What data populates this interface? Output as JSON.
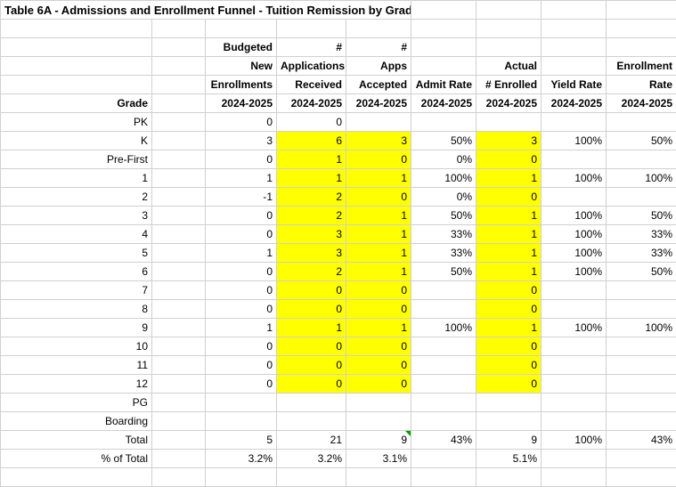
{
  "title": "Table 6A - Admissions and Enrollment Funnel - Tuition Remission by Grade",
  "headers": {
    "r1": [
      "",
      "",
      "Budgeted",
      "#",
      "#",
      "",
      "",
      "",
      ""
    ],
    "r2": [
      "",
      "",
      "New",
      "Applications",
      "Apps",
      "",
      "Actual",
      "",
      "Enrollment"
    ],
    "r3": [
      "",
      "",
      "Enrollments",
      "Received",
      "Accepted",
      "Admit Rate",
      "# Enrolled",
      "Yield Rate",
      "Rate"
    ],
    "r4": [
      "Grade",
      "",
      "2024-2025",
      "2024-2025",
      "2024-2025",
      "2024-2025",
      "2024-2025",
      "2024-2025",
      "2024-2025"
    ]
  },
  "rows": [
    {
      "grade": "PK",
      "budget": "0",
      "apps": "0",
      "acc": "",
      "admit": "",
      "enr": "",
      "yield": "",
      "erate": ""
    },
    {
      "grade": "K",
      "budget": "3",
      "apps": "6",
      "acc": "3",
      "admit": "50%",
      "enr": "3",
      "yield": "100%",
      "erate": "50%"
    },
    {
      "grade": "Pre-First",
      "budget": "0",
      "apps": "1",
      "acc": "0",
      "admit": "0%",
      "enr": "0",
      "yield": "",
      "erate": ""
    },
    {
      "grade": "1",
      "budget": "1",
      "apps": "1",
      "acc": "1",
      "admit": "100%",
      "enr": "1",
      "yield": "100%",
      "erate": "100%"
    },
    {
      "grade": "2",
      "budget": "-1",
      "apps": "2",
      "acc": "0",
      "admit": "0%",
      "enr": "0",
      "yield": "",
      "erate": ""
    },
    {
      "grade": "3",
      "budget": "0",
      "apps": "2",
      "acc": "1",
      "admit": "50%",
      "enr": "1",
      "yield": "100%",
      "erate": "50%"
    },
    {
      "grade": "4",
      "budget": "0",
      "apps": "3",
      "acc": "1",
      "admit": "33%",
      "enr": "1",
      "yield": "100%",
      "erate": "33%"
    },
    {
      "grade": "5",
      "budget": "1",
      "apps": "3",
      "acc": "1",
      "admit": "33%",
      "enr": "1",
      "yield": "100%",
      "erate": "33%"
    },
    {
      "grade": "6",
      "budget": "0",
      "apps": "2",
      "acc": "1",
      "admit": "50%",
      "enr": "1",
      "yield": "100%",
      "erate": "50%"
    },
    {
      "grade": "7",
      "budget": "0",
      "apps": "0",
      "acc": "0",
      "admit": "",
      "enr": "0",
      "yield": "",
      "erate": ""
    },
    {
      "grade": "8",
      "budget": "0",
      "apps": "0",
      "acc": "0",
      "admit": "",
      "enr": "0",
      "yield": "",
      "erate": ""
    },
    {
      "grade": "9",
      "budget": "1",
      "apps": "1",
      "acc": "1",
      "admit": "100%",
      "enr": "1",
      "yield": "100%",
      "erate": "100%"
    },
    {
      "grade": "10",
      "budget": "0",
      "apps": "0",
      "acc": "0",
      "admit": "",
      "enr": "0",
      "yield": "",
      "erate": ""
    },
    {
      "grade": "11",
      "budget": "0",
      "apps": "0",
      "acc": "0",
      "admit": "",
      "enr": "0",
      "yield": "",
      "erate": ""
    },
    {
      "grade": "12",
      "budget": "0",
      "apps": "0",
      "acc": "0",
      "admit": "",
      "enr": "0",
      "yield": "",
      "erate": ""
    },
    {
      "grade": "PG",
      "budget": "",
      "apps": "",
      "acc": "",
      "admit": "",
      "enr": "",
      "yield": "",
      "erate": ""
    },
    {
      "grade": "Boarding",
      "budget": "",
      "apps": "",
      "acc": "",
      "admit": "",
      "enr": "",
      "yield": "",
      "erate": ""
    }
  ],
  "total": {
    "label": "Total",
    "budget": "5",
    "apps": "21",
    "acc": "9",
    "admit": "43%",
    "enr": "9",
    "yield": "100%",
    "erate": "43%"
  },
  "pct": {
    "label": "% of Total",
    "budget": "3.2%",
    "apps": "3.2%",
    "acc": "3.1%",
    "admit": "",
    "enr": "5.1%",
    "yield": "",
    "erate": ""
  },
  "highlight_rows_start": 1,
  "highlight_rows_end": 14,
  "colors": {
    "highlight": "#ffff00",
    "border": "#d0d0d0",
    "triangle": "#00a000"
  }
}
